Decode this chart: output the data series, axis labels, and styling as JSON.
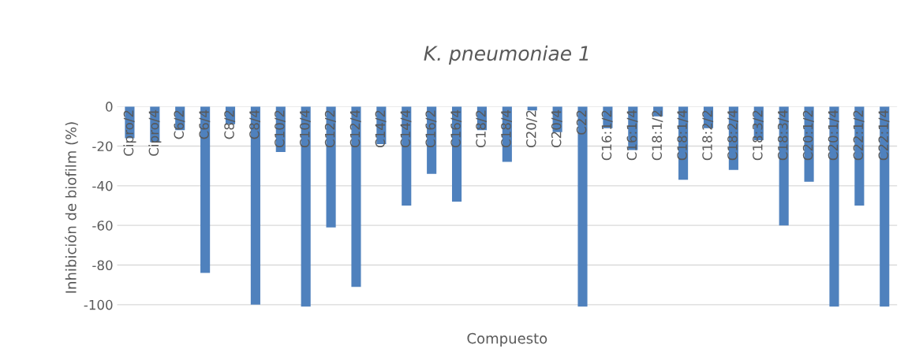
{
  "chart_data": {
    "type": "bar",
    "title": "K. pneumoniae 1",
    "xlabel": "Compuesto",
    "ylabel": "Inhibición de biofilm (%)",
    "categories": [
      "Cipro/2",
      "Cipro/4",
      "C6/2",
      "C6/4",
      "C8/2",
      "C8/4",
      "C10/2",
      "C10/4",
      "C12/2",
      "C12/4",
      "C14/2",
      "C14/4",
      "C16/2",
      "C16/4",
      "C18/2",
      "C18/4",
      "C20/2",
      "C20/4",
      "C22",
      "C16:1/2",
      "C16:1/4",
      "C18:1/2",
      "C18:1/4",
      "C18:2/2",
      "C18:2/4",
      "C18:3/2",
      "C18:3/4",
      "C20:1/2",
      "C20:1/4",
      "C22:1/2",
      "C22:1/4"
    ],
    "values": [
      -16,
      -18,
      -12,
      -84,
      -9,
      -100,
      -23,
      -101,
      -61,
      -91,
      -19,
      -50,
      -34,
      -48,
      -12,
      -28,
      -2,
      -13,
      -101,
      -11,
      -22,
      -5,
      -37,
      -11,
      -32,
      -17,
      -60,
      -38,
      -101,
      -50,
      -101
    ],
    "color": "#4f81bd",
    "ylim": [
      -102,
      0
    ],
    "yticks": [
      0,
      -20,
      -40,
      -60,
      -80,
      -100
    ],
    "grid": "y"
  }
}
